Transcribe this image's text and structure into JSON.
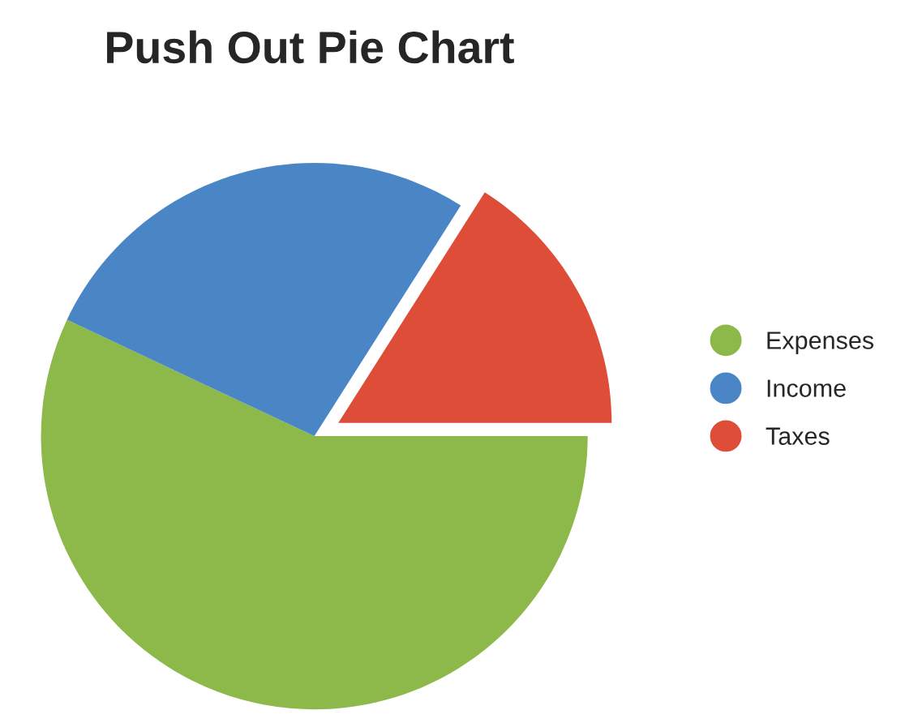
{
  "chart_data": {
    "type": "pie",
    "title": "Push Out Pie Chart",
    "categories": [
      "Expenses",
      "Income",
      "Taxes"
    ],
    "values": [
      57,
      27,
      16
    ],
    "colors": [
      "#8db84a",
      "#4a86c5",
      "#dd4d38"
    ],
    "legend": "right"
  }
}
